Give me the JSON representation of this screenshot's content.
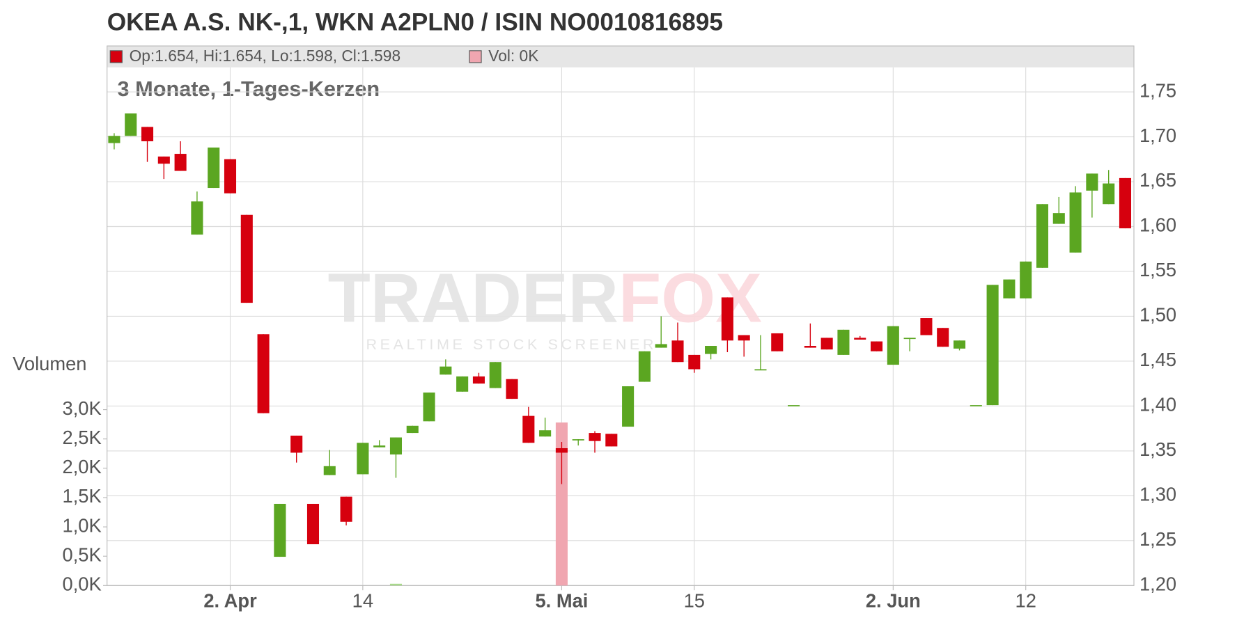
{
  "chart_data": {
    "type": "candlestick",
    "title": "OKEA A.S. NK-,1, WKN A2PLN0 / ISIN NO0010816895",
    "subtitle": "3 Monate, 1-Tages-Kerzen",
    "legend_price": "Op:1.654, Hi:1.654, Lo:1.598, Cl:1.598",
    "legend_volume": "Vol: 0K",
    "watermark_left": "TRADER",
    "watermark_right": "FOX",
    "watermark_sub": "REALTIME STOCK SCREENER",
    "y2label": "Volumen",
    "up_color": "#5ba621",
    "down_color": "#d6000e",
    "volume_up_color": "#a9d98c",
    "volume_down_color": "#f0a6b0",
    "grid": true,
    "categories": [
      null,
      null,
      null,
      null,
      null,
      null,
      null,
      "2. Apr",
      null,
      null,
      null,
      null,
      null,
      null,
      null,
      "14",
      null,
      null,
      null,
      null,
      null,
      null,
      null,
      null,
      null,
      null,
      null,
      "5. Mai",
      null,
      null,
      null,
      null,
      null,
      null,
      null,
      "15",
      null,
      null,
      null,
      null,
      null,
      null,
      null,
      null,
      null,
      null,
      null,
      "2. Jun",
      null,
      null,
      null,
      null,
      null,
      null,
      null,
      "12",
      null,
      null,
      null,
      null,
      null,
      null
    ],
    "open": [
      1.693,
      1.701,
      1.711,
      1.678,
      1.681,
      1.591,
      1.643,
      1.675,
      1.613,
      1.48,
      1.232,
      1.367,
      1.291,
      1.323,
      1.299,
      1.324,
      1.354,
      1.346,
      1.37,
      1.383,
      1.435,
      1.416,
      1.433,
      1.42,
      1.43,
      1.389,
      1.366,
      1.353,
      1.362,
      1.37,
      1.369,
      1.377,
      1.427,
      1.465,
      1.473,
      1.457,
      1.458,
      1.521,
      1.479,
      1.44,
      1.481,
      1.401,
      1.467,
      1.476,
      1.457,
      1.476,
      1.472,
      1.446,
      1.476,
      1.498,
      1.487,
      1.464,
      1.401,
      1.401,
      1.52,
      1.52,
      1.554,
      1.603,
      1.571,
      1.64,
      1.625,
      1.654
    ],
    "high": [
      1.704,
      1.726,
      1.711,
      1.678,
      1.695,
      1.639,
      1.688,
      1.675,
      1.613,
      1.48,
      1.291,
      1.367,
      1.291,
      1.351,
      1.299,
      1.359,
      1.362,
      1.365,
      1.378,
      1.415,
      1.452,
      1.433,
      1.437,
      1.449,
      1.43,
      1.399,
      1.387,
      1.36,
      1.363,
      1.372,
      1.369,
      1.422,
      1.461,
      1.5,
      1.493,
      1.457,
      1.467,
      1.521,
      1.479,
      1.479,
      1.481,
      1.401,
      1.492,
      1.476,
      1.485,
      1.478,
      1.472,
      1.489,
      1.476,
      1.498,
      1.487,
      1.473,
      1.401,
      1.535,
      1.541,
      1.561,
      1.625,
      1.633,
      1.645,
      1.659,
      1.663,
      1.654
    ],
    "low": [
      1.686,
      1.701,
      1.672,
      1.653,
      1.662,
      1.591,
      1.643,
      1.637,
      1.515,
      1.392,
      1.232,
      1.337,
      1.246,
      1.323,
      1.267,
      1.324,
      1.354,
      1.32,
      1.37,
      1.383,
      1.435,
      1.416,
      1.425,
      1.42,
      1.408,
      1.359,
      1.366,
      1.313,
      1.356,
      1.348,
      1.355,
      1.377,
      1.427,
      1.465,
      1.449,
      1.437,
      1.452,
      1.46,
      1.455,
      1.44,
      1.461,
      1.401,
      1.465,
      1.463,
      1.457,
      1.474,
      1.461,
      1.446,
      1.461,
      1.479,
      1.466,
      1.462,
      1.401,
      1.401,
      1.52,
      1.52,
      1.554,
      1.603,
      1.571,
      1.61,
      1.625,
      1.598
    ],
    "close": [
      1.701,
      1.726,
      1.695,
      1.67,
      1.662,
      1.628,
      1.688,
      1.637,
      1.515,
      1.392,
      1.291,
      1.348,
      1.246,
      1.333,
      1.271,
      1.359,
      1.356,
      1.365,
      1.378,
      1.415,
      1.444,
      1.433,
      1.425,
      1.449,
      1.408,
      1.359,
      1.373,
      1.348,
      1.363,
      1.361,
      1.355,
      1.422,
      1.461,
      1.469,
      1.449,
      1.441,
      1.467,
      1.473,
      1.473,
      1.441,
      1.461,
      1.401,
      1.465,
      1.463,
      1.485,
      1.474,
      1.461,
      1.489,
      1.476,
      1.479,
      1.466,
      1.473,
      1.401,
      1.535,
      1.541,
      1.561,
      1.625,
      1.615,
      1.638,
      1.659,
      1.648,
      1.598
    ],
    "volume": [
      0,
      0,
      0,
      0,
      0,
      0,
      0,
      0,
      0,
      0,
      0,
      0,
      0,
      0,
      0,
      0,
      0,
      30,
      0,
      0,
      0,
      0,
      0,
      0,
      0,
      0,
      0,
      2780,
      0,
      0,
      0,
      0,
      0,
      0,
      0,
      0,
      0,
      0,
      0,
      0,
      0,
      0,
      0,
      0,
      0,
      0,
      0,
      0,
      0,
      0,
      0,
      0,
      0,
      0,
      0,
      0,
      0,
      0,
      0,
      0,
      0,
      0
    ],
    "ylim": [
      1.2,
      1.75
    ],
    "yticks": [
      {
        "value": 1.2,
        "label": "1,20"
      },
      {
        "value": 1.25,
        "label": "1,25"
      },
      {
        "value": 1.3,
        "label": "1,30"
      },
      {
        "value": 1.35,
        "label": "1,35"
      },
      {
        "value": 1.4,
        "label": "1,40"
      },
      {
        "value": 1.45,
        "label": "1,45"
      },
      {
        "value": 1.5,
        "label": "1,50"
      },
      {
        "value": 1.55,
        "label": "1,55"
      },
      {
        "value": 1.6,
        "label": "1,60"
      },
      {
        "value": 1.65,
        "label": "1,65"
      },
      {
        "value": 1.7,
        "label": "1,70"
      },
      {
        "value": 1.75,
        "label": "1,75"
      }
    ],
    "y2lim": [
      0,
      3000
    ],
    "y2ticks": [
      {
        "value": 0,
        "label": "0,0K"
      },
      {
        "value": 500,
        "label": "0,5K"
      },
      {
        "value": 1000,
        "label": "1,0K"
      },
      {
        "value": 1500,
        "label": "1,5K"
      },
      {
        "value": 2000,
        "label": "2,0K"
      },
      {
        "value": 2500,
        "label": "2,5K"
      },
      {
        "value": 3000,
        "label": "3,0K"
      }
    ]
  }
}
